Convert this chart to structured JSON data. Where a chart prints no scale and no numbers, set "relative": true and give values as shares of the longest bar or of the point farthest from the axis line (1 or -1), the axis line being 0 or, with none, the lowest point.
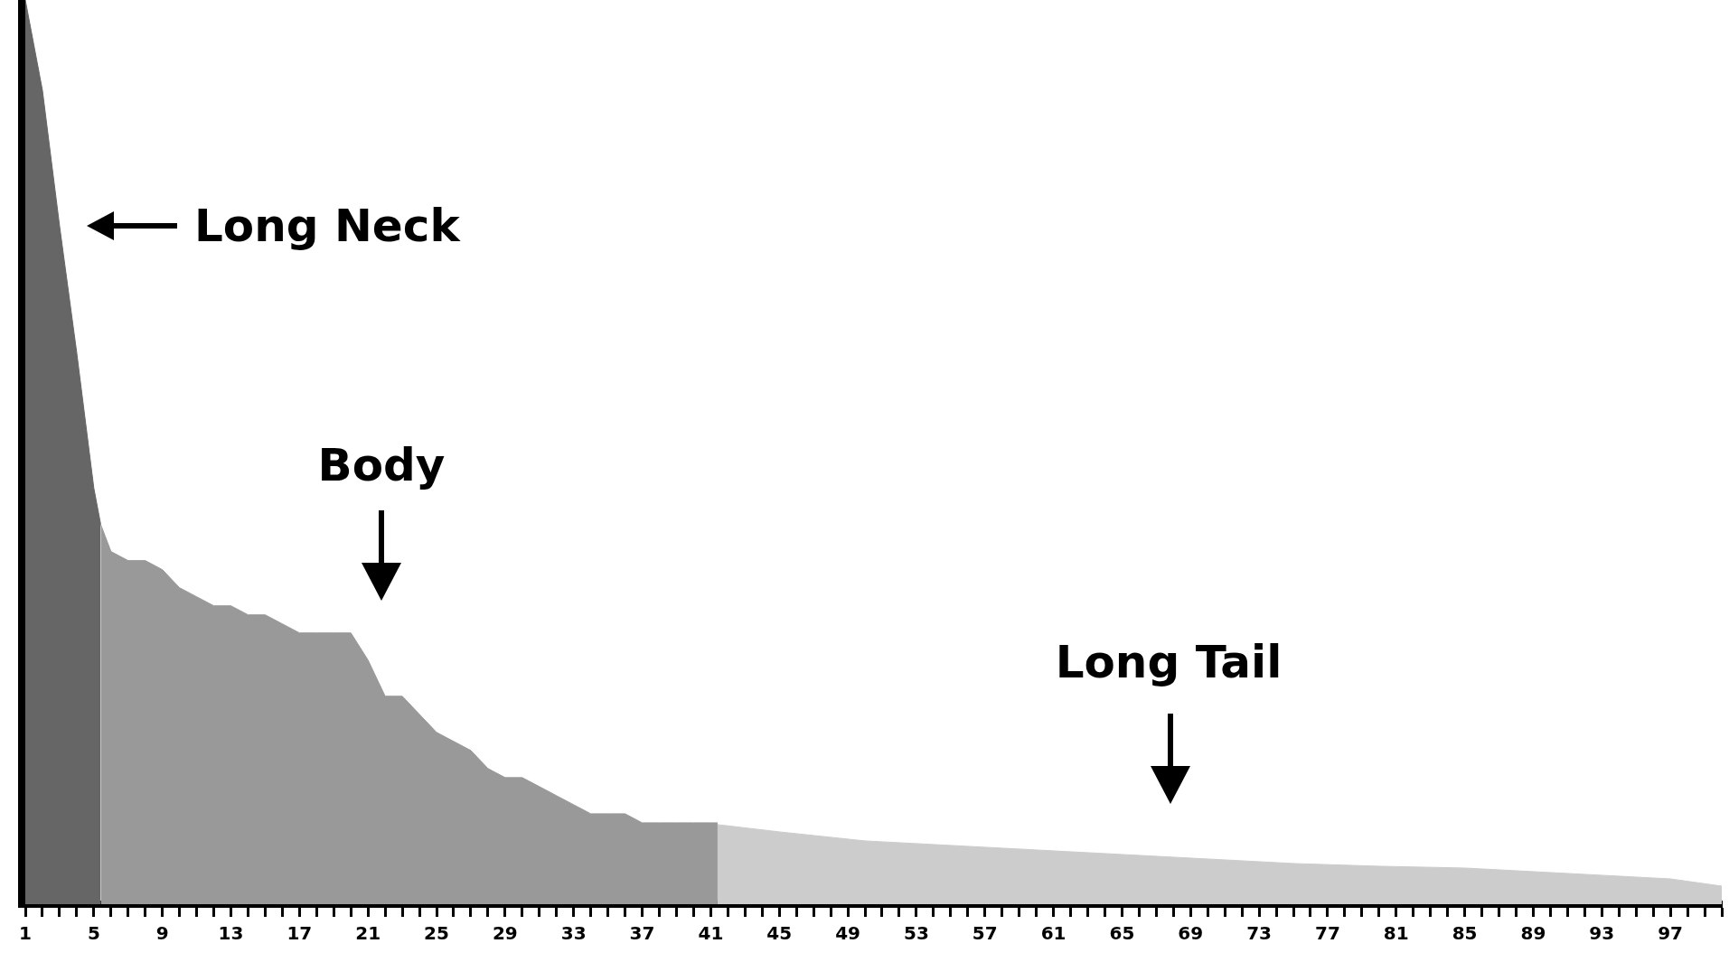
{
  "chart_data": {
    "type": "area",
    "relative": true,
    "xlim": [
      1,
      100
    ],
    "xticks": [
      1,
      {
        "value": 2,
        "label": null
      },
      {
        "value": 3,
        "label": null
      },
      {
        "value": 4,
        "label": null
      },
      5,
      {
        "value": 6,
        "label": null
      },
      {
        "value": 7,
        "label": null
      },
      {
        "value": 8,
        "label": null
      },
      9,
      {
        "value": 10,
        "label": null
      },
      {
        "value": 11,
        "label": null
      },
      {
        "value": 12,
        "label": null
      },
      13,
      {
        "value": 14,
        "label": null
      },
      {
        "value": 15,
        "label": null
      },
      {
        "value": 16,
        "label": null
      },
      17,
      {
        "value": 18,
        "label": null
      },
      {
        "value": 19,
        "label": null
      },
      {
        "value": 20,
        "label": null
      },
      21,
      {
        "value": 22,
        "label": null
      },
      {
        "value": 23,
        "label": null
      },
      {
        "value": 24,
        "label": null
      },
      25,
      {
        "value": 26,
        "label": null
      },
      {
        "value": 27,
        "label": null
      },
      {
        "value": 28,
        "label": null
      },
      29,
      {
        "value": 30,
        "label": null
      },
      {
        "value": 31,
        "label": null
      },
      {
        "value": 32,
        "label": null
      },
      33,
      {
        "value": 34,
        "label": null
      },
      {
        "value": 35,
        "label": null
      },
      {
        "value": 36,
        "label": null
      },
      37,
      {
        "value": 38,
        "label": null
      },
      {
        "value": 39,
        "label": null
      },
      {
        "value": 40,
        "label": null
      },
      41,
      {
        "value": 42,
        "label": null
      },
      {
        "value": 43,
        "label": null
      },
      {
        "value": 44,
        "label": null
      },
      45,
      {
        "value": 46,
        "label": null
      },
      {
        "value": 47,
        "label": null
      },
      {
        "value": 48,
        "label": null
      },
      49,
      {
        "value": 50,
        "label": null
      },
      {
        "value": 51,
        "label": null
      },
      {
        "value": 52,
        "label": null
      },
      53,
      {
        "value": 54,
        "label": null
      },
      {
        "value": 55,
        "label": null
      },
      {
        "value": 56,
        "label": null
      },
      57,
      {
        "value": 58,
        "label": null
      },
      {
        "value": 59,
        "label": null
      },
      {
        "value": 60,
        "label": null
      },
      61,
      {
        "value": 62,
        "label": null
      },
      {
        "value": 63,
        "label": null
      },
      {
        "value": 64,
        "label": null
      },
      65,
      {
        "value": 66,
        "label": null
      },
      {
        "value": 67,
        "label": null
      },
      {
        "value": 68,
        "label": null
      },
      69,
      {
        "value": 70,
        "label": null
      },
      {
        "value": 71,
        "label": null
      },
      {
        "value": 72,
        "label": null
      },
      73,
      {
        "value": 74,
        "label": null
      },
      {
        "value": 75,
        "label": null
      },
      {
        "value": 76,
        "label": null
      },
      77,
      {
        "value": 78,
        "label": null
      },
      {
        "value": 79,
        "label": null
      },
      {
        "value": 80,
        "label": null
      },
      81,
      {
        "value": 82,
        "label": null
      },
      {
        "value": 83,
        "label": null
      },
      {
        "value": 84,
        "label": null
      },
      85,
      {
        "value": 86,
        "label": null
      },
      {
        "value": 87,
        "label": null
      },
      {
        "value": 88,
        "label": null
      },
      89,
      {
        "value": 90,
        "label": null
      },
      {
        "value": 91,
        "label": null
      },
      {
        "value": 92,
        "label": null
      },
      93,
      {
        "value": 94,
        "label": null
      },
      {
        "value": 95,
        "label": null
      },
      {
        "value": 96,
        "label": null
      },
      97,
      {
        "value": 98,
        "label": null
      },
      {
        "value": 99,
        "label": null
      },
      {
        "value": 100,
        "label": null
      }
    ],
    "series": [
      {
        "color": "#666666",
        "x": [
          1,
          2,
          3,
          4,
          5,
          5.4
        ],
        "values": [
          1.0,
          0.9,
          0.75,
          0.61,
          0.46,
          0.42
        ]
      },
      {
        "color": "#999999",
        "x": [
          5.4,
          6,
          7,
          8,
          9,
          10,
          11,
          12,
          13,
          14,
          15,
          16,
          17,
          18,
          19,
          20,
          21,
          22,
          23,
          24,
          25,
          26,
          27,
          28,
          29,
          30,
          31,
          32,
          33,
          34,
          35,
          36,
          37,
          38,
          39,
          40,
          41,
          41.4
        ],
        "values": [
          0.42,
          0.39,
          0.38,
          0.38,
          0.37,
          0.35,
          0.34,
          0.33,
          0.33,
          0.32,
          0.32,
          0.31,
          0.3,
          0.3,
          0.3,
          0.3,
          0.27,
          0.23,
          0.23,
          0.21,
          0.19,
          0.18,
          0.17,
          0.15,
          0.14,
          0.14,
          0.13,
          0.12,
          0.11,
          0.1,
          0.1,
          0.1,
          0.09,
          0.09,
          0.09,
          0.09,
          0.09,
          0.09
        ]
      },
      {
        "color": "#cccccc",
        "x": [
          41.4,
          45,
          50,
          55,
          60,
          65,
          70,
          75,
          80,
          85,
          90,
          95,
          97,
          100
        ],
        "values": [
          0.088,
          0.08,
          0.07,
          0.065,
          0.06,
          0.055,
          0.05,
          0.045,
          0.042,
          0.04,
          0.035,
          0.03,
          0.028,
          0.02
        ]
      }
    ],
    "annotations": [
      "Long Neck",
      "Body",
      "Long Tail"
    ]
  }
}
